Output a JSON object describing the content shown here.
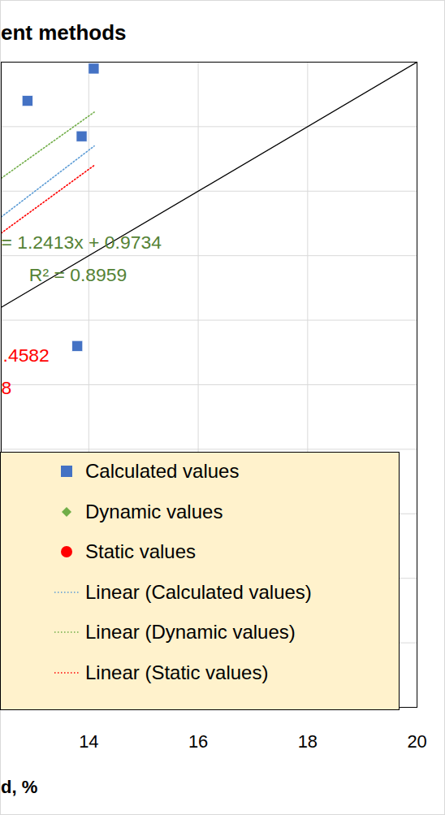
{
  "chart_data": {
    "type": "scatter",
    "title": "ent methods",
    "x_label": "d, %",
    "xlim": [
      12.4,
      20
    ],
    "ylim": [
      0,
      20
    ],
    "xticks": [
      14,
      16,
      18,
      20
    ],
    "yticks": [
      0,
      2,
      4,
      6,
      8,
      10,
      12,
      14,
      16,
      18,
      20
    ],
    "grid": true,
    "tick_labels": "x",
    "legend": "bottom-left",
    "series": [
      {
        "name": "Calculated values",
        "type": "scatter",
        "marker": "square",
        "color": "#4472C4",
        "x": [
          14.09,
          12.88,
          13.87,
          13.79
        ],
        "values": [
          19.8,
          18.8,
          17.7,
          11.2
        ]
      },
      {
        "name": "Dynamic values",
        "type": "scatter",
        "marker": "diamond",
        "color": "#70AD47",
        "x": [],
        "values": []
      },
      {
        "name": "Static values",
        "type": "scatter",
        "marker": "circle",
        "color": "#FF0000",
        "x": [],
        "values": []
      },
      {
        "name": "Linear (Calculated values)",
        "type": "line",
        "line_style": "dotted",
        "color": "#5B9BD5",
        "x": [
          12.4,
          14.1
        ],
        "values": [
          15.2,
          17.4
        ]
      },
      {
        "name": "Linear (Dynamic values)",
        "type": "line",
        "line_style": "dotted",
        "color": "#70AD47",
        "x": [
          12.4,
          14.1
        ],
        "values": [
          16.4,
          18.45
        ]
      },
      {
        "name": "Linear (Static values)",
        "type": "line",
        "line_style": "dotted",
        "color": "#FF0000",
        "x": [
          12.4,
          14.1
        ],
        "values": [
          14.7,
          16.8
        ]
      }
    ],
    "reference_line": {
      "x": [
        12.4,
        20
      ],
      "values": [
        12.4,
        20
      ],
      "color": "#000000"
    },
    "annotations": [
      {
        "text": "= 1.2413x + 0.9734",
        "x": 12.4,
        "y": 14.4,
        "color": "#548235"
      },
      {
        "text": "R² = 0.8959",
        "x": 12.91,
        "y": 13.4,
        "color": "#548235"
      },
      {
        "text": ".4582",
        "x": 12.43,
        "y": 10.9,
        "color": "#FF0000"
      },
      {
        "text": "8",
        "x": 12.4,
        "y": 9.9,
        "color": "#FF0000"
      }
    ]
  }
}
